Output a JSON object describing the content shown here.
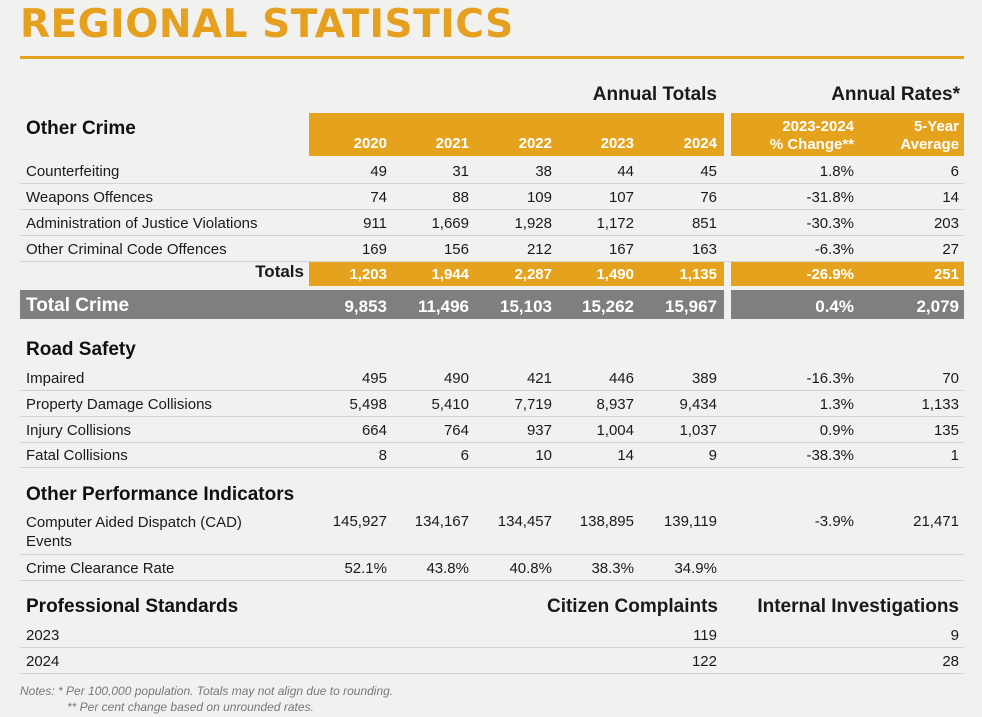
{
  "title": "REGIONAL STATISTICS",
  "groups": {
    "annual_totals": "Annual Totals",
    "annual_rates": "Annual Rates*"
  },
  "years": [
    "2020",
    "2021",
    "2022",
    "2023",
    "2024"
  ],
  "rate_headers": {
    "change_line1": "2023-2024",
    "change_line2": "% Change**",
    "avg_line1": "5-Year",
    "avg_line2": "Average"
  },
  "sections": {
    "other_crime": "Other Crime",
    "road_safety": "Road Safety",
    "other_performance": "Other Performance Indicators",
    "professional_standards": "Professional Standards"
  },
  "other_crime_rows": [
    {
      "label": "Counterfeiting",
      "values": [
        "49",
        "31",
        "38",
        "44",
        "45"
      ],
      "change": "1.8%",
      "avg": "6"
    },
    {
      "label": "Weapons Offences",
      "values": [
        "74",
        "88",
        "109",
        "107",
        "76"
      ],
      "change": "-31.8%",
      "avg": "14"
    },
    {
      "label": "Administration of Justice Violations",
      "values": [
        "911",
        "1,669",
        "1,928",
        "1,172",
        "851"
      ],
      "change": "-30.3%",
      "avg": "203"
    },
    {
      "label": "Other Criminal Code Offences",
      "values": [
        "169",
        "156",
        "212",
        "167",
        "163"
      ],
      "change": "-6.3%",
      "avg": "27"
    }
  ],
  "totals": {
    "label": "Totals",
    "values": [
      "1,203",
      "1,944",
      "2,287",
      "1,490",
      "1,135"
    ],
    "change": "-26.9%",
    "avg": "251"
  },
  "total_crime": {
    "label": "Total Crime",
    "values": [
      "9,853",
      "11,496",
      "15,103",
      "15,262",
      "15,967"
    ],
    "change": "0.4%",
    "avg": "2,079"
  },
  "road_safety_rows": [
    {
      "label": "Impaired",
      "values": [
        "495",
        "490",
        "421",
        "446",
        "389"
      ],
      "change": "-16.3%",
      "avg": "70"
    },
    {
      "label": "Property Damage Collisions",
      "values": [
        "5,498",
        "5,410",
        "7,719",
        "8,937",
        "9,434"
      ],
      "change": "1.3%",
      "avg": "1,133"
    },
    {
      "label": "Injury Collisions",
      "values": [
        "664",
        "764",
        "937",
        "1,004",
        "1,037"
      ],
      "change": "0.9%",
      "avg": "135"
    },
    {
      "label": "Fatal Collisions",
      "values": [
        "8",
        "6",
        "10",
        "14",
        "9"
      ],
      "change": "-38.3%",
      "avg": "1"
    }
  ],
  "performance_rows": [
    {
      "label_line1": "Computer Aided Dispatch (CAD)",
      "label_line2": "Events",
      "values": [
        "145,927",
        "134,167",
        "134,457",
        "138,895",
        "139,119"
      ],
      "change": "-3.9%",
      "avg": "21,471"
    },
    {
      "label": "Crime Clearance Rate",
      "values": [
        "52.1%",
        "43.8%",
        "40.8%",
        "38.3%",
        "34.9%"
      ],
      "change": "",
      "avg": ""
    }
  ],
  "professional": {
    "col1": "Citizen Complaints",
    "col2": "Internal Investigations",
    "rows": [
      {
        "year": "2023",
        "complaints": "119",
        "investigations": "9"
      },
      {
        "year": "2024",
        "complaints": "122",
        "investigations": "28"
      }
    ]
  },
  "notes": {
    "line1": "Notes:  * Per 100,000 population. Totals may not align due to rounding.",
    "line2": "** Per cent change based on unrounded rates."
  },
  "colors": {
    "accent": "#e5a21c",
    "title": "#e6a020",
    "total_bar": "#7f7f7f"
  }
}
